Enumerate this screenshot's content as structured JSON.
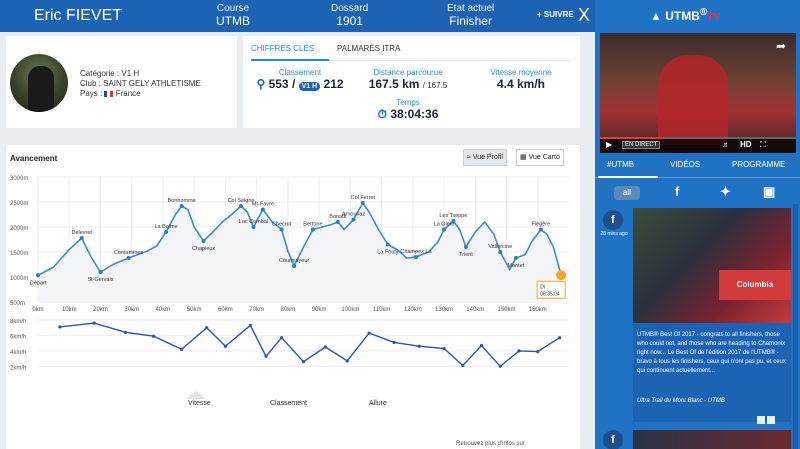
{
  "header": {
    "runner_name": "Eric FIEVET",
    "course_label": "Course",
    "course_value": "UTMB",
    "bib_label": "Dossard",
    "bib_value": "1901",
    "status_label": "Etat actuel",
    "status_value": "Finisher",
    "follow_label": "+ SUIVRE",
    "close_label": "X"
  },
  "athlete": {
    "category_label": "Catégorie : V1 H",
    "club_label": "Club : SAINT GELY ATHLETISME",
    "country_label": "Pays :",
    "country_value": "France"
  },
  "stats": {
    "tabs": [
      "CHIFFRES CLÉS",
      "PALMARÈS ITRA"
    ],
    "ranking_label": "Classement",
    "ranking_value": "553",
    "ranking_badge": "V1 H",
    "ranking_category": "212",
    "distance_label": "Distance parcourue",
    "distance_value": "167.5 km",
    "distance_total": "167.5",
    "speed_label": "Vitesse moyenne",
    "speed_value": "4.4 km/h",
    "time_label": "Temps",
    "time_value": "38:04:36"
  },
  "progress": {
    "title": "Avancement",
    "profile_button": "Vue Profil",
    "map_button": "Vue Carto",
    "marker_day": "Di",
    "marker_time": "08:35:04",
    "legend": [
      "Vitesse",
      "Classement",
      "Allure"
    ],
    "footer_text": "Retrouvez plus d'infos sur"
  },
  "chart_data": [
    {
      "type": "line",
      "title": "",
      "xlabel": "",
      "ylabel": "",
      "x_ticks": [
        "0km",
        "10km",
        "20km",
        "30km",
        "40km",
        "50km",
        "60km",
        "70km",
        "80km",
        "90km",
        "100km",
        "110km",
        "120km",
        "130km",
        "140km",
        "150km",
        "160km"
      ],
      "y_ticks": [
        "500m",
        "1000m",
        "1500m",
        "2000m",
        "2500m",
        "3000m"
      ],
      "xlim": [
        0,
        170
      ],
      "ylim": [
        500,
        3000
      ],
      "series": [
        {
          "values": [
            [
              0,
              1035
            ],
            [
              5,
              1200
            ],
            [
              10,
              1550
            ],
            [
              14,
              1780
            ],
            [
              17,
              1400
            ],
            [
              20,
              1100
            ],
            [
              24,
              1250
            ],
            [
              29,
              1380
            ],
            [
              35,
              1520
            ],
            [
              38,
              1620
            ],
            [
              41,
              1900
            ],
            [
              44,
              2250
            ],
            [
              46,
              2420
            ],
            [
              48,
              2350
            ],
            [
              50,
              2000
            ],
            [
              53,
              1720
            ],
            [
              56,
              1900
            ],
            [
              59,
              2100
            ],
            [
              62,
              2250
            ],
            [
              65,
              2420
            ],
            [
              67,
              2300
            ],
            [
              69,
              2000
            ],
            [
              72,
              2350
            ],
            [
              75,
              2100
            ],
            [
              78,
              1950
            ],
            [
              80,
              1520
            ],
            [
              82,
              1220
            ],
            [
              85,
              1600
            ],
            [
              88,
              1950
            ],
            [
              91,
              2000
            ],
            [
              94,
              2050
            ],
            [
              96,
              2100
            ],
            [
              98,
              1950
            ],
            [
              101,
              2150
            ],
            [
              104,
              2480
            ],
            [
              106,
              2300
            ],
            [
              109,
              1950
            ],
            [
              112,
              1650
            ],
            [
              115,
              1550
            ],
            [
              118,
              1380
            ],
            [
              121,
              1400
            ],
            [
              125,
              1500
            ],
            [
              128,
              1700
            ],
            [
              130,
              1950
            ],
            [
              133,
              2120
            ],
            [
              135,
              1950
            ],
            [
              137,
              1600
            ],
            [
              140,
              1900
            ],
            [
              143,
              2100
            ],
            [
              146,
              1850
            ],
            [
              148,
              1500
            ],
            [
              151,
              1150
            ],
            [
              153,
              1380
            ],
            [
              156,
              1450
            ],
            [
              158,
              1700
            ],
            [
              161,
              1950
            ],
            [
              163,
              1850
            ],
            [
              165,
              1600
            ],
            [
              167.5,
              1035
            ]
          ]
        }
      ],
      "annotations": [
        {
          "label": "Départ",
          "x": 0,
          "y": 1035
        },
        {
          "label": "Delevret",
          "x": 14,
          "y": 1780
        },
        {
          "label": "St-Gervais",
          "x": 20,
          "y": 1100
        },
        {
          "label": "Contamines",
          "x": 29,
          "y": 1380
        },
        {
          "label": "La Balme",
          "x": 41,
          "y": 1900
        },
        {
          "label": "Bonhomme",
          "x": 46,
          "y": 2420
        },
        {
          "label": "Chapieux",
          "x": 53,
          "y": 1720
        },
        {
          "label": "Col Seigne",
          "x": 65,
          "y": 2420
        },
        {
          "label": "Lac Combal",
          "x": 69,
          "y": 2000
        },
        {
          "label": "Mt-Favre",
          "x": 72,
          "y": 2350
        },
        {
          "label": "Checrut",
          "x": 78,
          "y": 1950
        },
        {
          "label": "Courmayeur",
          "x": 82,
          "y": 1220
        },
        {
          "label": "Bertone",
          "x": 88,
          "y": 1950
        },
        {
          "label": "Bonatti",
          "x": 96,
          "y": 2100
        },
        {
          "label": "Arnouvaz",
          "x": 101,
          "y": 2150
        },
        {
          "label": "Col Ferret",
          "x": 104,
          "y": 2480
        },
        {
          "label": "La Fouly",
          "x": 112,
          "y": 1650
        },
        {
          "label": "Champex La",
          "x": 121,
          "y": 1400
        },
        {
          "label": "La Giete",
          "x": 130,
          "y": 1950
        },
        {
          "label": "Les Tseppe",
          "x": 133,
          "y": 2120
        },
        {
          "label": "Trient",
          "x": 137,
          "y": 1600
        },
        {
          "label": "Vallorcine",
          "x": 148,
          "y": 1500
        },
        {
          "label": "Montet",
          "x": 153,
          "y": 1380
        },
        {
          "label": "Flégère",
          "x": 161,
          "y": 1950
        }
      ]
    },
    {
      "type": "line",
      "title": "",
      "ylabel": "",
      "y_ticks": [
        "2km/h",
        "4km/h",
        "6km/h",
        "8km/h"
      ],
      "ylim": [
        1,
        8
      ],
      "series": [
        {
          "values": [
            [
              7,
              7.1
            ],
            [
              18,
              7.6
            ],
            [
              28,
              6.4
            ],
            [
              37,
              5.9
            ],
            [
              46,
              4.2
            ],
            [
              54,
              7.0
            ],
            [
              60,
              4.6
            ],
            [
              68,
              7.3
            ],
            [
              73,
              3.3
            ],
            [
              78,
              5.7
            ],
            [
              85,
              2.6
            ],
            [
              92,
              4.5
            ],
            [
              99,
              2.7
            ],
            [
              106,
              6.3
            ],
            [
              114,
              5.1
            ],
            [
              122,
              4.6
            ],
            [
              130,
              4.3
            ],
            [
              136,
              2.1
            ],
            [
              142,
              4.7
            ],
            [
              148,
              2.0
            ],
            [
              154,
              4.0
            ],
            [
              160,
              3.9
            ],
            [
              167,
              5.7
            ]
          ]
        }
      ]
    }
  ],
  "side": {
    "brand": "UTMB",
    "brand_mark": "®",
    "brand_tv": "TV",
    "video_live": "EN DIRECT",
    "video_hd": "HD",
    "tabs": [
      "#UTMB",
      "VIDÉOS",
      "PROGRAMME"
    ],
    "filter_all": "all",
    "post_time": "28 mins ago",
    "post_banner": "Columbia",
    "post_text": "UTMB® Best Of 2017 - congrats to all finishers, those who could not, and those who are heading to Chamonix right now... Le Best Of de l'édition 2017 de l'UTMB® - bravo à tous les finishers, ceux qui n'ont pas pu, et ceux qui continuent actuellement...",
    "post_source": "Ultra Trail du Mont Blanc - UTMB"
  },
  "colors": {
    "primary_blue": "#1d63b5",
    "side_blue": "#2072c4",
    "line_blue": "#3a8bd4",
    "speed_line": "#2b54b6",
    "marker": "#f5a623",
    "accent_red": "#e6363d"
  }
}
